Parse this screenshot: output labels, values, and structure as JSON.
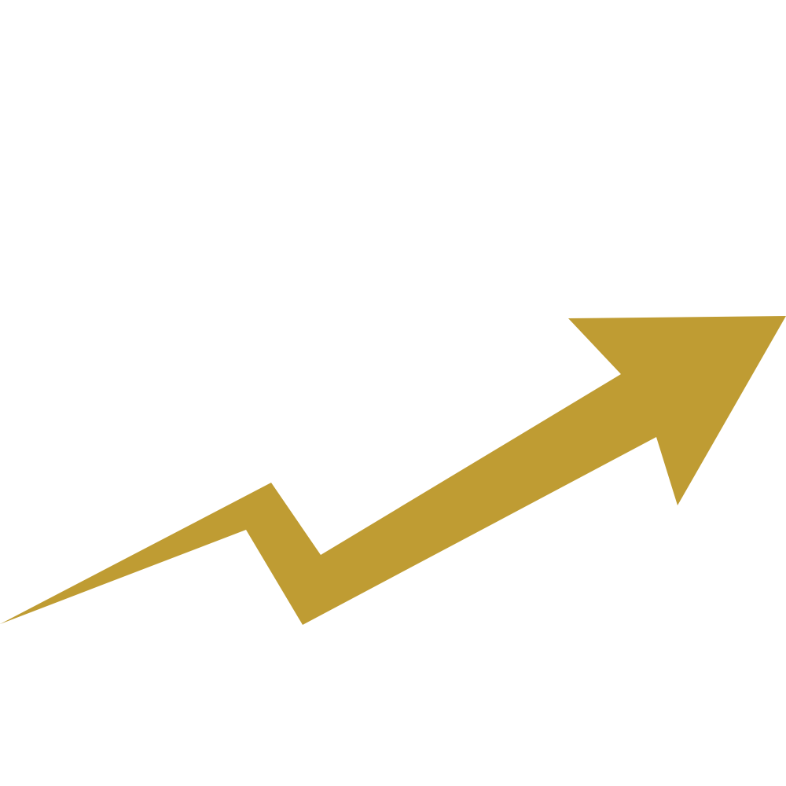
{
  "graphic": {
    "icon": "trending-up-arrow-icon",
    "color": "#BF9C33",
    "background": "#FFFFFF"
  }
}
